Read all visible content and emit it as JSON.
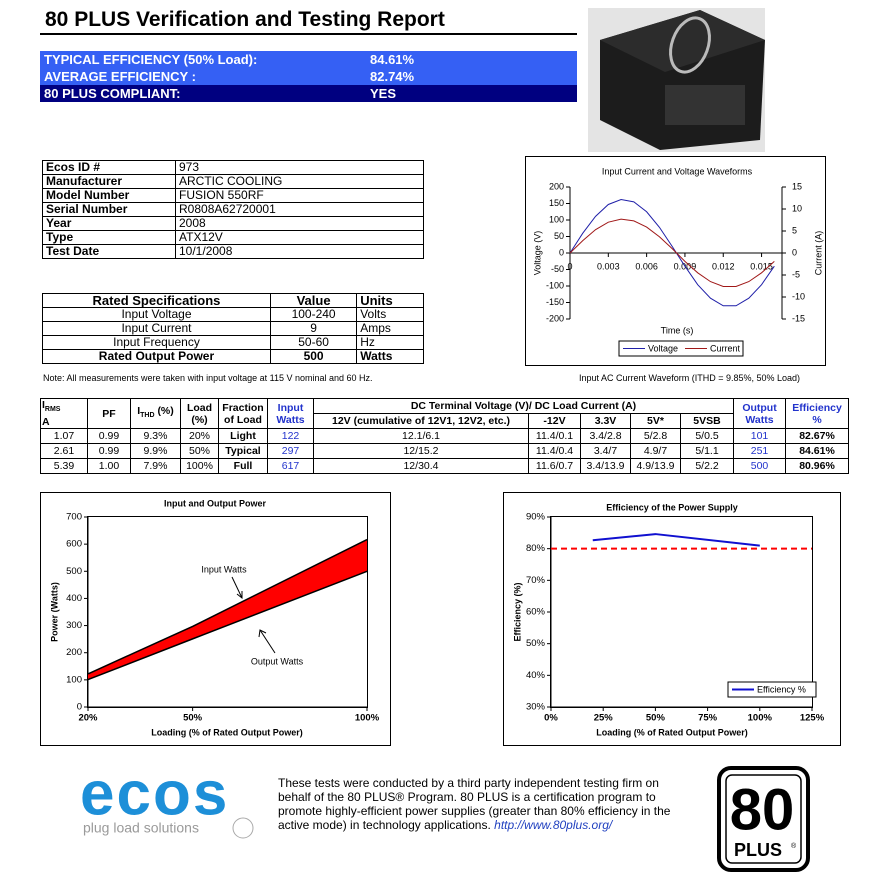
{
  "header": {
    "title": "80 PLUS Verification and Testing Report"
  },
  "summary": {
    "rows": [
      [
        "TYPICAL EFFICIENCY (50% Load):",
        "84.61%"
      ],
      [
        "AVERAGE EFFICIENCY :",
        "82.74%"
      ],
      [
        "80 PLUS COMPLIANT:",
        "YES"
      ]
    ]
  },
  "info": {
    "rows": [
      [
        "Ecos ID #",
        "973"
      ],
      [
        "Manufacturer",
        "ARCTIC COOLING"
      ],
      [
        "Model Number",
        "FUSION 550RF"
      ],
      [
        "Serial Number",
        "R0808A62720001"
      ],
      [
        "Year",
        "2008"
      ],
      [
        "Type",
        "ATX12V"
      ],
      [
        "Test Date",
        "10/1/2008"
      ]
    ]
  },
  "rated": {
    "header": [
      "Rated Specifications",
      "Value",
      "Units"
    ],
    "rows": [
      [
        "Input Voltage",
        "100-240",
        "Volts"
      ],
      [
        "Input Current",
        "9",
        "Amps"
      ],
      [
        "Input Frequency",
        "50-60",
        "Hz"
      ],
      [
        "Rated Output Power",
        "500",
        "Watts"
      ]
    ]
  },
  "note": "Note: All measurements were taken with input voltage at 115 V nominal and 60 Hz.",
  "caption": "Input AC Current Waveform (ITHD = 9.85%, 50% Load)",
  "test_table": {
    "header": {
      "irms": {
        "main": "I",
        "sub": "RMS",
        "unit": "A"
      },
      "pf": "PF",
      "ithd": {
        "main": "I",
        "sub": "THD",
        "unit": "(%)"
      },
      "load": [
        "Load",
        "(%)"
      ],
      "fraction": [
        "Fraction",
        "of Load"
      ],
      "input": [
        "Input",
        "Watts"
      ],
      "dc": "DC Terminal Voltage (V)/ DC Load Current (A)",
      "rails": [
        "12V (cumulative of 12V1, 12V2, etc.)",
        "-12V",
        "3.3V",
        "5V*",
        "5VSB"
      ],
      "output": [
        "Output",
        "Watts"
      ],
      "efficiency": [
        "Efficiency",
        "%"
      ]
    },
    "rows": [
      [
        "1.07",
        "0.99",
        "9.3%",
        "20%",
        "Light",
        "122",
        "12.1/6.1",
        "11.4/0.1",
        "3.4/2.8",
        "5/2.8",
        "5/0.5",
        "101",
        "82.67%"
      ],
      [
        "2.61",
        "0.99",
        "9.9%",
        "50%",
        "Typical",
        "297",
        "12/15.2",
        "11.4/0.4",
        "3.4/7",
        "4.9/7",
        "5/1.1",
        "251",
        "84.61%"
      ],
      [
        "5.39",
        "1.00",
        "7.9%",
        "100%",
        "Full",
        "617",
        "12/30.4",
        "11.6/0.7",
        "3.4/13.9",
        "4.9/13.9",
        "5/2.2",
        "500",
        "80.96%"
      ]
    ]
  },
  "chart_data": [
    {
      "type": "line",
      "title": "Input Current and Voltage Waveforms",
      "x_label": "Time (s)",
      "y_label": "Voltage (V)",
      "y2_label": "Current (A)",
      "x": [
        0,
        0.001,
        0.002,
        0.003,
        0.004,
        0.005,
        0.006,
        0.007,
        0.008,
        0.009,
        0.01,
        0.011,
        0.012,
        0.013,
        0.014,
        0.015,
        0.016
      ],
      "series": [
        {
          "name": "Voltage",
          "color": "#1f1fa8",
          "values": [
            0,
            60,
            111,
            147,
            162,
            155,
            125,
            78,
            20,
            -40,
            -96,
            -137,
            -160,
            -160,
            -137,
            -96,
            -40
          ]
        },
        {
          "name": "Current",
          "color": "#a01818",
          "axis": "y2",
          "values": [
            0,
            2.8,
            5.3,
            7.0,
            7.7,
            7.3,
            5.9,
            3.7,
            1.0,
            -1.9,
            -4.5,
            -6.5,
            -7.6,
            -7.6,
            -6.5,
            -4.5,
            -1.9
          ]
        }
      ],
      "xlim": [
        0,
        0.0166
      ],
      "xticks": [
        0,
        0.003,
        0.006,
        0.009,
        0.012,
        0.015
      ],
      "ylim": [
        -200,
        200
      ],
      "yticks": [
        -200,
        -150,
        -100,
        -50,
        0,
        50,
        100,
        150,
        200
      ],
      "y2lim": [
        -15,
        15
      ],
      "y2ticks": [
        -15,
        -10,
        -5,
        0,
        5,
        10,
        15
      ],
      "grid": false,
      "legend": "below"
    },
    {
      "type": "area",
      "title": "Input and Output Power",
      "x_label": "Loading (% of Rated Output Power)",
      "y_label": "Power (Watts)",
      "x": [
        20,
        50,
        100
      ],
      "series": [
        {
          "name": "Input Watts",
          "color": "#000000",
          "values": [
            122,
            297,
            617
          ]
        },
        {
          "name": "Output Watts",
          "color": "#000000",
          "values": [
            101,
            251,
            500
          ]
        }
      ],
      "fill": "#ff0000",
      "xlim": [
        20,
        100
      ],
      "xticks": [
        {
          "value": 20,
          "label": "20%"
        },
        {
          "value": 50,
          "label": "50%"
        },
        {
          "value": 100,
          "label": "100%"
        }
      ],
      "ylim": [
        0,
        700
      ],
      "yticks": [
        0,
        100,
        200,
        300,
        400,
        500,
        600,
        700
      ],
      "grid": false,
      "legend": "none"
    },
    {
      "type": "line",
      "title": "Efficiency of the Power Supply",
      "x_label": "Loading (% of Rated Output Power)",
      "y_label": "Efficiency (%)",
      "x": [
        20,
        50,
        100
      ],
      "series": [
        {
          "name": "Efficiency %",
          "color": "#1010d0",
          "values": [
            82.67,
            84.61,
            80.96
          ]
        }
      ],
      "reference_line": {
        "value": 80,
        "color": "#ff0000"
      },
      "xlim": [
        0,
        125
      ],
      "xticks": [
        {
          "value": 0,
          "label": "0%"
        },
        {
          "value": 25,
          "label": "25%"
        },
        {
          "value": 50,
          "label": "50%"
        },
        {
          "value": 75,
          "label": "75%"
        },
        {
          "value": 100,
          "label": "100%"
        },
        {
          "value": 125,
          "label": "125%"
        }
      ],
      "ylim": [
        30,
        90
      ],
      "yticks": [
        {
          "value": 30,
          "label": "30%"
        },
        {
          "value": 40,
          "label": "40%"
        },
        {
          "value": 50,
          "label": "50%"
        },
        {
          "value": 60,
          "label": "60%"
        },
        {
          "value": 70,
          "label": "70%"
        },
        {
          "value": 80,
          "label": "80%"
        },
        {
          "value": 90,
          "label": "90%"
        }
      ],
      "grid": false,
      "legend": "lower right"
    }
  ],
  "footer": {
    "logo": "ecos",
    "tagline": "plug load solutions",
    "text": "These tests were conducted by a third party independent testing firm on behalf of the 80 PLUS® Program. 80 PLUS is a certification program to promote highly-efficient power supplies (greater than 80% efficiency in the active mode) in technology applications.",
    "link": "http://www.80plus.org/",
    "badge": {
      "number": "80",
      "word": "PLUS",
      "mark": "®"
    }
  }
}
